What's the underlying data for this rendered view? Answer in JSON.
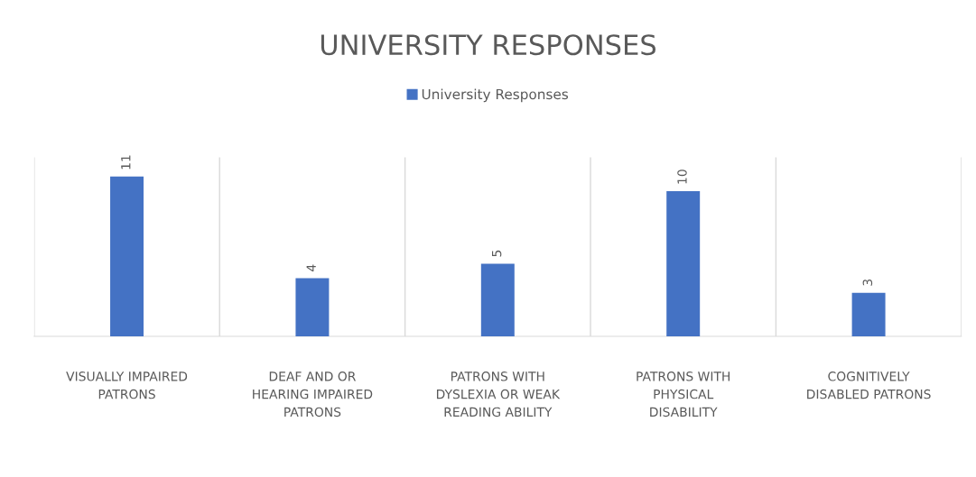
{
  "chart_data": {
    "type": "bar",
    "title": "UNIVERSITY RESPONSES",
    "categories": [
      "VISUALLY IMPAIRED PATRONS",
      "DEAF AND OR HEARING IMPAIRED PATRONS",
      "PATRONS WITH DYSLEXIA OR WEAK READING ABILITY",
      "PATRONS WITH PHYSICAL DISABILITY",
      "COGNITIVELY DISABLED PATRONS"
    ],
    "series": [
      {
        "name": "University Responses",
        "color": "#4472c4",
        "values": [
          11,
          4,
          5,
          10,
          3
        ]
      }
    ],
    "data_labels": true,
    "grid": "x",
    "legend": "top",
    "tick_labels": "x"
  }
}
